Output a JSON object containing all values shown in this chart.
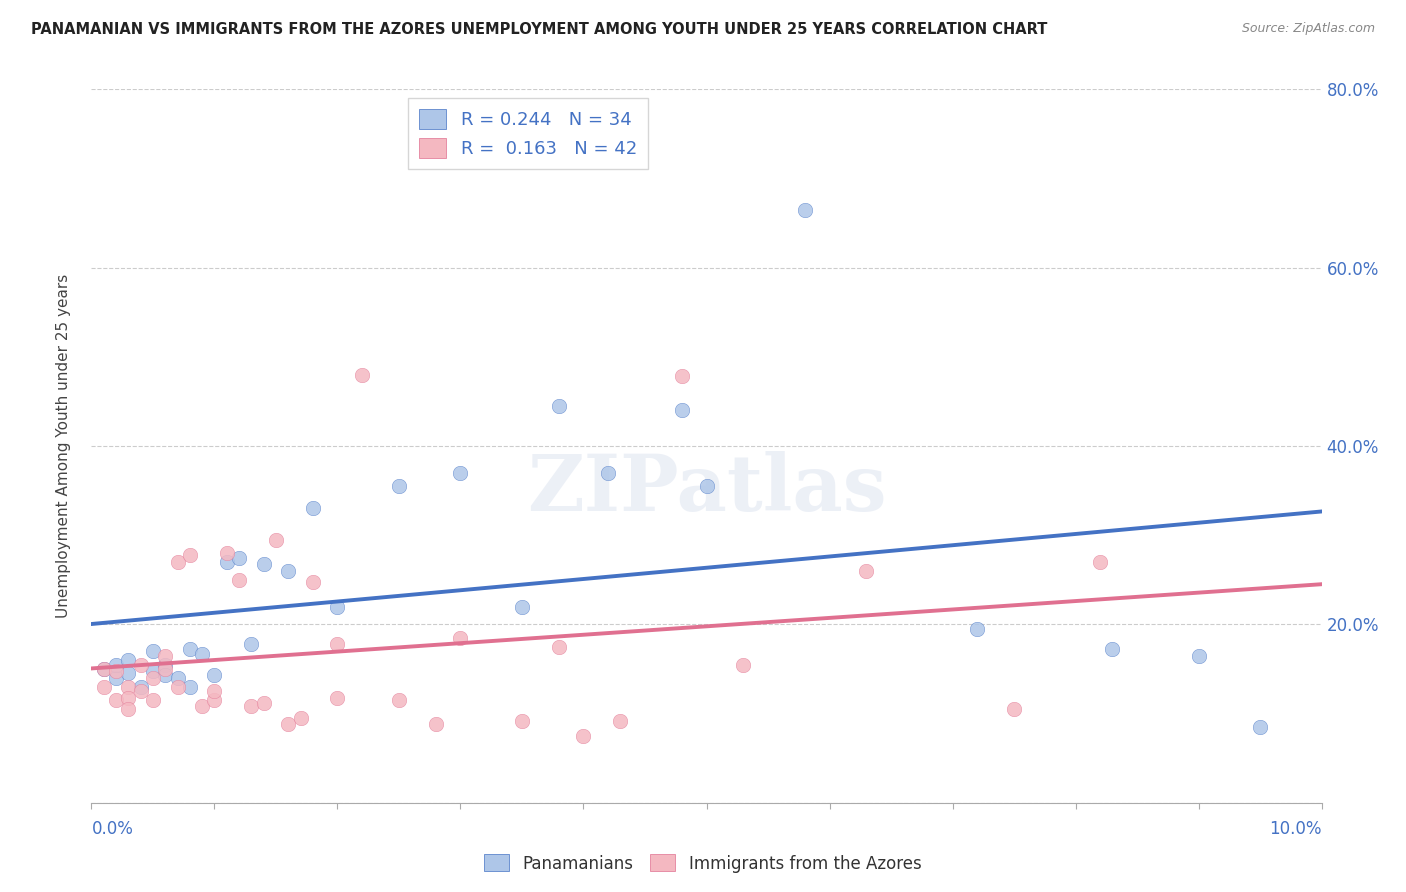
{
  "title": "PANAMANIAN VS IMMIGRANTS FROM THE AZORES UNEMPLOYMENT AMONG YOUTH UNDER 25 YEARS CORRELATION CHART",
  "source": "Source: ZipAtlas.com",
  "ylabel": "Unemployment Among Youth under 25 years",
  "series1_label": "Panamanians",
  "series2_label": "Immigrants from the Azores",
  "R1": 0.244,
  "N1": 34,
  "R2": 0.163,
  "N2": 42,
  "color1": "#aec6e8",
  "color2": "#f4b8c1",
  "line_color1": "#4472c4",
  "line_color2": "#e07090",
  "blue_color": "#4472c4",
  "pink_color": "#e07090",
  "ylim_max": 0.8,
  "xlim_max": 0.1,
  "blue_x": [
    0.001,
    0.002,
    0.002,
    0.003,
    0.003,
    0.004,
    0.005,
    0.005,
    0.006,
    0.006,
    0.007,
    0.008,
    0.008,
    0.009,
    0.01,
    0.011,
    0.012,
    0.013,
    0.014,
    0.016,
    0.018,
    0.02,
    0.025,
    0.03,
    0.035,
    0.038,
    0.042,
    0.048,
    0.05,
    0.058,
    0.072,
    0.083,
    0.09,
    0.095
  ],
  "blue_y": [
    0.15,
    0.14,
    0.155,
    0.16,
    0.145,
    0.13,
    0.17,
    0.148,
    0.155,
    0.143,
    0.14,
    0.172,
    0.13,
    0.167,
    0.143,
    0.27,
    0.275,
    0.178,
    0.268,
    0.26,
    0.33,
    0.22,
    0.355,
    0.37,
    0.22,
    0.445,
    0.37,
    0.44,
    0.355,
    0.665,
    0.195,
    0.172,
    0.165,
    0.085
  ],
  "pink_x": [
    0.001,
    0.001,
    0.002,
    0.002,
    0.003,
    0.003,
    0.003,
    0.004,
    0.004,
    0.005,
    0.005,
    0.006,
    0.006,
    0.007,
    0.007,
    0.008,
    0.009,
    0.01,
    0.01,
    0.011,
    0.012,
    0.013,
    0.014,
    0.015,
    0.016,
    0.017,
    0.018,
    0.02,
    0.02,
    0.022,
    0.025,
    0.028,
    0.03,
    0.035,
    0.038,
    0.04,
    0.043,
    0.048,
    0.053,
    0.063,
    0.075,
    0.082
  ],
  "pink_y": [
    0.15,
    0.13,
    0.148,
    0.115,
    0.13,
    0.118,
    0.105,
    0.155,
    0.125,
    0.14,
    0.115,
    0.165,
    0.15,
    0.13,
    0.27,
    0.278,
    0.108,
    0.115,
    0.125,
    0.28,
    0.25,
    0.108,
    0.112,
    0.295,
    0.088,
    0.095,
    0.248,
    0.178,
    0.118,
    0.48,
    0.115,
    0.088,
    0.185,
    0.092,
    0.175,
    0.075,
    0.092,
    0.478,
    0.155,
    0.26,
    0.105,
    0.27
  ]
}
